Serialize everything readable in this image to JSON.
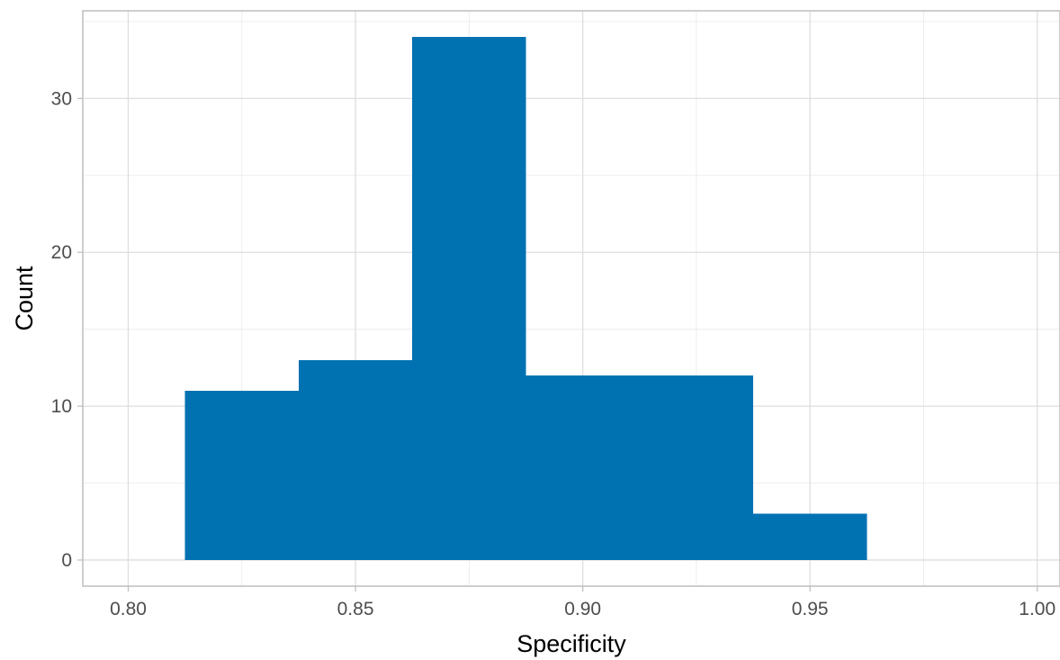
{
  "chart_data": {
    "type": "bar",
    "subtype": "histogram",
    "xlabel": "Specificity",
    "ylabel": "Count",
    "xlim": [
      0.79,
      1.005
    ],
    "ylim": [
      -1.7,
      35.7
    ],
    "x_ticks": [
      0.8,
      0.85,
      0.9,
      0.95,
      1.0
    ],
    "x_tick_labels": [
      "0.80",
      "0.85",
      "0.90",
      "0.95",
      "1.00"
    ],
    "y_ticks": [
      0,
      10,
      20,
      30
    ],
    "y_tick_labels": [
      "0",
      "10",
      "20",
      "30"
    ],
    "bin_width": 0.025,
    "bins": [
      {
        "x_start": 0.8125,
        "x_end": 0.8375,
        "count": 11
      },
      {
        "x_start": 0.8375,
        "x_end": 0.8625,
        "count": 13
      },
      {
        "x_start": 0.8625,
        "x_end": 0.8875,
        "count": 34
      },
      {
        "x_start": 0.8875,
        "x_end": 0.9125,
        "count": 12
      },
      {
        "x_start": 0.9125,
        "x_end": 0.9375,
        "count": 12
      },
      {
        "x_start": 0.9375,
        "x_end": 0.9625,
        "count": 3
      }
    ],
    "bar_color": "#0072B2",
    "grid": true,
    "legend": "none"
  }
}
